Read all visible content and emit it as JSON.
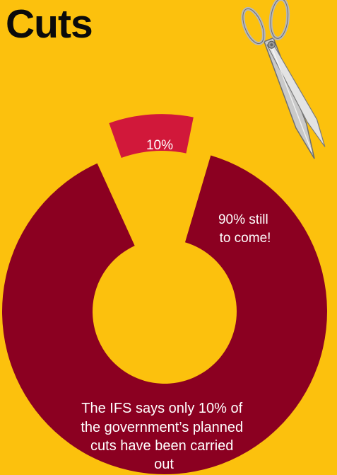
{
  "colors": {
    "background": "#FCC10D",
    "remaining": "#8B0021",
    "done": "#D1183A",
    "title": "#0b0b0b",
    "label": "#ffffff"
  },
  "chart_data": {
    "type": "pie",
    "title": "Cuts",
    "slices": [
      {
        "label": "10%",
        "value": 10,
        "color": "#D1183A",
        "exploded": true
      },
      {
        "label": "90% still to come!",
        "value": 90,
        "color": "#8B0021",
        "exploded": false
      }
    ],
    "annotation": "The IFS says only 10% of the government’s planned cuts have been carried out"
  },
  "decoration": {
    "icon": "scissors-icon"
  }
}
